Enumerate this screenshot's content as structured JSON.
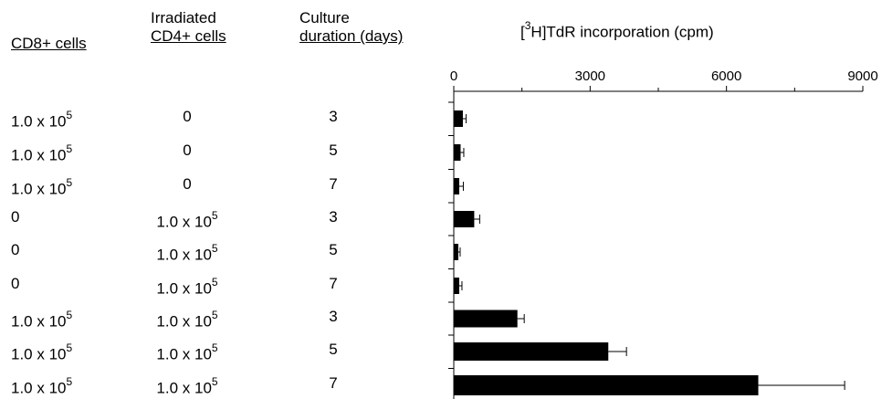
{
  "table": {
    "headers": {
      "col1": "CD8+ cells",
      "col2_line1": "Irradiated",
      "col2_line2": "CD4+ cells",
      "col3_line1": "Culture",
      "col3_line2": "duration (days)"
    },
    "rows": [
      {
        "cd8_base": "1.0 x 10",
        "cd8_exp": "5",
        "cd4_base": "",
        "cd4_exp": "",
        "cd4_zero": "0",
        "days": "3"
      },
      {
        "cd8_base": "1.0 x 10",
        "cd8_exp": "5",
        "cd4_base": "",
        "cd4_exp": "",
        "cd4_zero": "0",
        "days": "5"
      },
      {
        "cd8_base": "1.0 x 10",
        "cd8_exp": "5",
        "cd4_base": "",
        "cd4_exp": "",
        "cd4_zero": "0",
        "days": "7"
      },
      {
        "cd8_zero": "0",
        "cd4_base": "1.0 x 10",
        "cd4_exp": "5",
        "days": "3"
      },
      {
        "cd8_zero": "0",
        "cd4_base": "1.0 x 10",
        "cd4_exp": "5",
        "days": "5"
      },
      {
        "cd8_zero": "0",
        "cd4_base": "1.0 x 10",
        "cd4_exp": "5",
        "days": "7"
      },
      {
        "cd8_base": "1.0 x 10",
        "cd8_exp": "5",
        "cd4_base": "1.0 x 10",
        "cd4_exp": "5",
        "days": "3"
      },
      {
        "cd8_base": "1.0 x 10",
        "cd8_exp": "5",
        "cd4_base": "1.0 x 10",
        "cd4_exp": "5",
        "days": "5"
      },
      {
        "cd8_base": "1.0 x 10",
        "cd8_exp": "5",
        "cd4_base": "1.0 x 10",
        "cd4_exp": "5",
        "days": "7"
      }
    ]
  },
  "chart_data": {
    "type": "bar",
    "orientation": "horizontal",
    "title_prefix": "[",
    "title_sup": "3",
    "title_rest": "H]TdR incorporation (cpm)",
    "xlim": [
      0,
      9000
    ],
    "x_ticks": [
      "0",
      "3000",
      "6000",
      "9000"
    ],
    "x_tick_values": [
      0,
      3000,
      6000,
      9000
    ],
    "x_minor_ticks": [
      1500,
      4500,
      7500
    ],
    "values": [
      200,
      150,
      120,
      450,
      100,
      120,
      1400,
      3400,
      6700
    ],
    "errors": [
      70,
      70,
      90,
      120,
      40,
      60,
      150,
      400,
      1900
    ],
    "bar_color": "#000000",
    "grid": false
  }
}
